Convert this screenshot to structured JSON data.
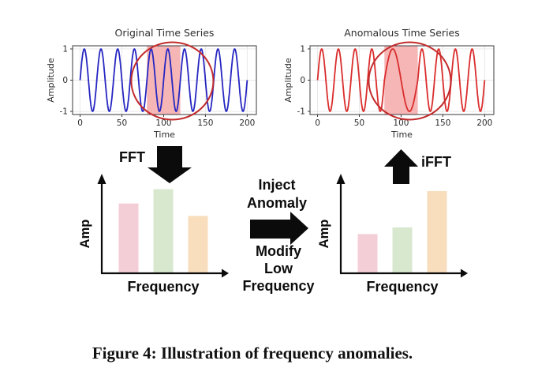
{
  "figure": {
    "caption": "Figure 4: Illustration of frequency anomalies."
  },
  "labels": {
    "fft": "FFT",
    "ifft": "iFFT",
    "inject_line1": "Inject",
    "inject_line2": "Anomaly",
    "modify_line1": "Modify",
    "modify_line2": "Low",
    "modify_line3": "Frequency"
  },
  "chart_data": [
    {
      "id": "original",
      "type": "line",
      "title": "Original Time Series",
      "xlabel": "Time",
      "ylabel": "Amplitude",
      "xlim": [
        -9,
        211
      ],
      "ylim": [
        -1.1,
        1.1
      ],
      "xticks": [
        0,
        50,
        100,
        150,
        200
      ],
      "yticks": [
        -1,
        0,
        1
      ],
      "grid": true,
      "wave": {
        "shape": "sine",
        "amplitude": 1,
        "period": 20,
        "t_start": 0,
        "t_end": 200
      },
      "anomaly_window": [
        80,
        120
      ],
      "anomaly_period": null,
      "line_color": "#2626c2",
      "band_color": "#f6b6b6",
      "circle_color": "#c32b2b"
    },
    {
      "id": "anomalous",
      "type": "line",
      "title": "Anomalous Time Series",
      "xlabel": "Time",
      "ylabel": "Amplitude",
      "xlim": [
        -9,
        211
      ],
      "ylim": [
        -1.1,
        1.1
      ],
      "xticks": [
        0,
        50,
        100,
        150,
        200
      ],
      "yticks": [
        -1,
        0,
        1
      ],
      "grid": true,
      "wave": {
        "shape": "sine",
        "amplitude": 1,
        "period": 20,
        "t_start": 0,
        "t_end": 200
      },
      "anomaly_window": [
        80,
        120
      ],
      "anomaly_period": 40,
      "line_color": "#da2c2c",
      "band_color": "#f6b6b6",
      "circle_color": "#c32b2b"
    },
    {
      "id": "fft_original",
      "type": "bar",
      "xlabel": "Frequency",
      "ylabel": "Amp",
      "values": [
        0.73,
        0.88,
        0.6
      ],
      "bar_colors": [
        "#f4ced6",
        "#d7e8cf",
        "#f8debd"
      ],
      "ylim": [
        0,
        1
      ]
    },
    {
      "id": "fft_anomalous",
      "type": "bar",
      "xlabel": "Frequency",
      "ylabel": "Amp",
      "values": [
        0.41,
        0.48,
        0.86
      ],
      "bar_colors": [
        "#f4ced6",
        "#d7e8cf",
        "#f8debd"
      ],
      "ylim": [
        0,
        1
      ]
    }
  ]
}
